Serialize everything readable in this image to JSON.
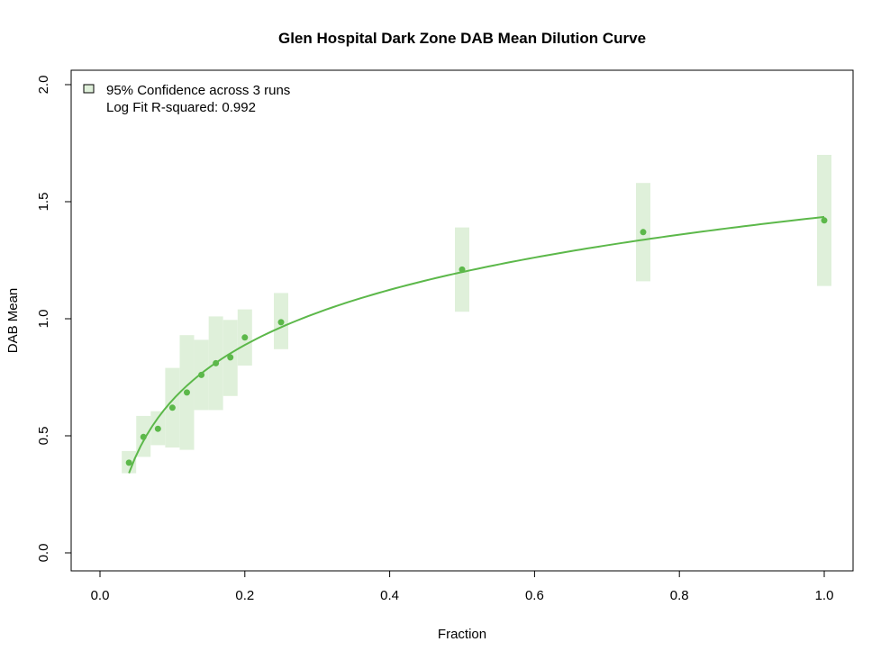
{
  "chart_data": {
    "type": "scatter",
    "title": "Glen Hospital Dark Zone DAB Mean Dilution Curve",
    "xlabel": "Fraction",
    "ylabel": "DAB Mean",
    "xlim": [
      0,
      1
    ],
    "ylim": [
      0,
      2
    ],
    "x_ticks": [
      0.0,
      0.2,
      0.4,
      0.6,
      0.8,
      1.0
    ],
    "x_tick_labels": [
      "0.0",
      "0.2",
      "0.4",
      "0.6",
      "0.8",
      "1.0"
    ],
    "y_ticks": [
      0.0,
      0.5,
      1.0,
      1.5,
      2.0
    ],
    "y_tick_labels": [
      "0.0",
      "0.5",
      "1.0",
      "1.5",
      "2.0"
    ],
    "grid": false,
    "legend_position": "top-left",
    "legend": {
      "confidence_label": "95% Confidence across 3 runs",
      "fit_label": "Log Fit R-squared: 0.992"
    },
    "colors": {
      "point": "#5cb84a",
      "band": "#dff0da",
      "fit": "#5cb84a"
    },
    "x": [
      0.04,
      0.06,
      0.08,
      0.1,
      0.12,
      0.14,
      0.16,
      0.18,
      0.2,
      0.25,
      0.5,
      0.75,
      1.0
    ],
    "series": [
      {
        "values": [
          0.385,
          0.495,
          0.53,
          0.62,
          0.685,
          0.76,
          0.81,
          0.835,
          0.92,
          0.985,
          1.21,
          1.37,
          1.42
        ]
      }
    ],
    "ci_lower": [
      0.34,
      0.41,
      0.46,
      0.45,
      0.44,
      0.61,
      0.61,
      0.67,
      0.8,
      0.87,
      1.03,
      1.16,
      1.14
    ],
    "ci_upper": [
      0.435,
      0.585,
      0.605,
      0.79,
      0.93,
      0.91,
      1.01,
      0.995,
      1.04,
      1.11,
      1.39,
      1.58,
      1.7
    ],
    "fit": {
      "model": "log",
      "intercept": 1.435,
      "slope": 0.34,
      "x_range": [
        0.04,
        1.0
      ]
    }
  }
}
